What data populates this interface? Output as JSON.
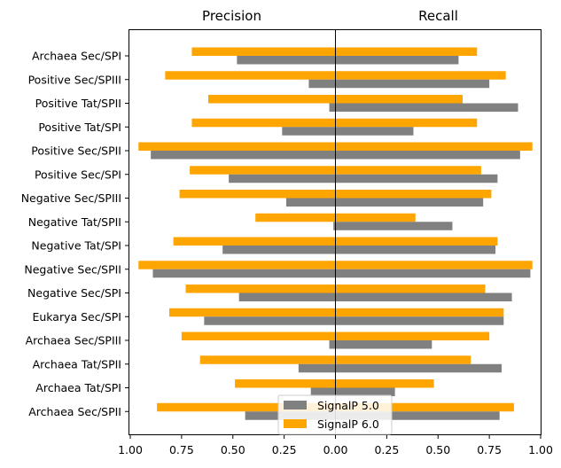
{
  "chart_data": {
    "type": "bar",
    "orientation": "horizontal-diverging",
    "panel_titles": {
      "left": "Precision",
      "right": "Recall"
    },
    "categories": [
      "Archaea Sec/SPI",
      "Positive Sec/SPIII",
      "Positive Tat/SPII",
      "Positive Tat/SPI",
      "Positive Sec/SPII",
      "Positive Sec/SPI",
      "Negative Sec/SPIII",
      "Negative Tat/SPII",
      "Negative Tat/SPI",
      "Negative Sec/SPII",
      "Negative Sec/SPI",
      "Eukarya Sec/SPI",
      "Archaea Sec/SPIII",
      "Archaea Tat/SPII",
      "Archaea Tat/SPI",
      "Archaea Sec/SPII"
    ],
    "series": [
      {
        "name": "SignalP 5.0",
        "color": "#808080",
        "precision": [
          0.48,
          0.13,
          0.03,
          0.26,
          0.9,
          0.52,
          0.24,
          0.01,
          0.55,
          0.89,
          0.47,
          0.64,
          0.03,
          0.18,
          0.12,
          0.44
        ],
        "recall": [
          0.6,
          0.75,
          0.89,
          0.38,
          0.9,
          0.79,
          0.72,
          0.57,
          0.78,
          0.95,
          0.86,
          0.82,
          0.47,
          0.81,
          0.29,
          0.8
        ]
      },
      {
        "name": "SignalP 6.0",
        "color": "#FFA500",
        "precision": [
          0.7,
          0.83,
          0.62,
          0.7,
          0.96,
          0.71,
          0.76,
          0.39,
          0.79,
          0.96,
          0.73,
          0.81,
          0.75,
          0.66,
          0.49,
          0.87
        ],
        "recall": [
          0.69,
          0.83,
          0.62,
          0.69,
          0.96,
          0.71,
          0.76,
          0.39,
          0.79,
          0.96,
          0.73,
          0.82,
          0.75,
          0.66,
          0.48,
          0.87
        ]
      }
    ],
    "x_ticks": [
      "1.00",
      "0.75",
      "0.50",
      "0.25",
      "0.00",
      "0.25",
      "0.50",
      "0.75",
      "1.00"
    ],
    "xlim": [
      -1.0,
      1.0
    ],
    "grid": false,
    "legend_position": "bottom-center"
  }
}
